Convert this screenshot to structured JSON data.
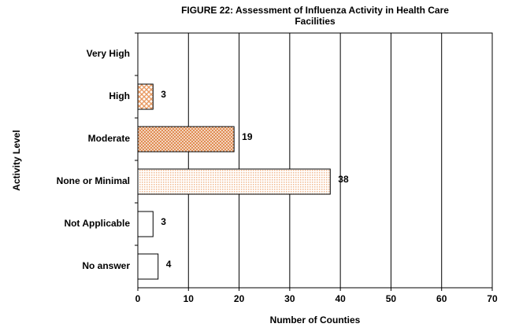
{
  "chart_data": {
    "type": "bar",
    "orientation": "horizontal",
    "title": "FIGURE 22: Assessment of Influenza Activity in Health Care Facilities",
    "x_label": "Number of Counties",
    "y_label": "Activity Level",
    "categories": [
      "Very High",
      "High",
      "Moderate",
      "None or Minimal",
      "Not Applicable",
      "No answer"
    ],
    "values": [
      null,
      3,
      19,
      38,
      3,
      4
    ],
    "colors": [
      "#ffffff",
      "#f4b183",
      "#f4b183",
      "#fbe5d6",
      "#ffffff",
      "#ffffff"
    ],
    "xlim": [
      0,
      70
    ],
    "xticks": [
      0,
      10,
      20,
      30,
      40,
      50,
      60,
      70
    ],
    "grid": true
  }
}
